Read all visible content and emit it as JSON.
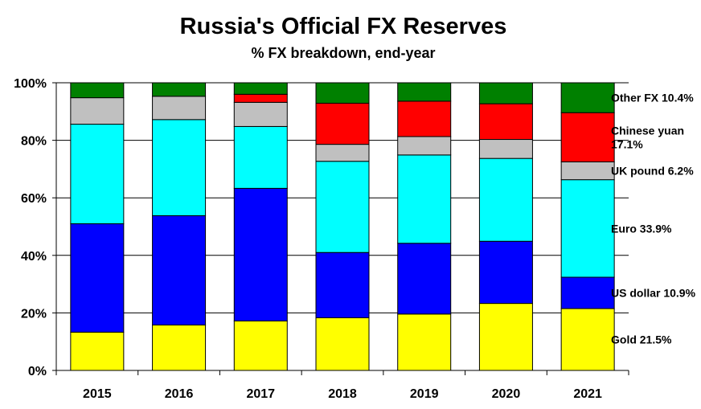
{
  "chart_data": {
    "type": "bar",
    "stacked": true,
    "title": "Russia's Official FX Reserves",
    "subtitle": "% FX breakdown, end-year",
    "categories": [
      "2015",
      "2016",
      "2017",
      "2018",
      "2019",
      "2020",
      "2021"
    ],
    "ylim": [
      0,
      100
    ],
    "yticks": [
      0,
      20,
      40,
      60,
      80,
      100
    ],
    "ytick_labels": [
      "0%",
      "20%",
      "40%",
      "60%",
      "80%",
      "100%"
    ],
    "grid": "horizontal",
    "series": [
      {
        "key": "gold",
        "color": "#ffff00",
        "values": [
          13.3,
          15.8,
          17.2,
          18.3,
          19.6,
          23.3,
          21.5
        ]
      },
      {
        "key": "usd",
        "color": "#0000ff",
        "values": [
          37.7,
          38.0,
          46.1,
          22.7,
          24.6,
          21.6,
          10.9
        ]
      },
      {
        "key": "eur",
        "color": "#00ffff",
        "values": [
          34.6,
          33.4,
          21.5,
          31.7,
          30.7,
          28.8,
          33.9
        ]
      },
      {
        "key": "gbp",
        "color": "#c0c0c0",
        "values": [
          9.2,
          8.1,
          8.4,
          5.9,
          6.4,
          6.6,
          6.2
        ]
      },
      {
        "key": "cny",
        "color": "#ff0000",
        "values": [
          0.0,
          0.0,
          2.8,
          14.3,
          12.3,
          12.4,
          17.1
        ]
      },
      {
        "key": "other",
        "color": "#008000",
        "values": [
          5.2,
          4.7,
          4.0,
          7.1,
          6.4,
          7.3,
          10.4
        ]
      }
    ],
    "annotations": [
      {
        "series": "other",
        "lines": [
          "Other FX 10.4%"
        ]
      },
      {
        "series": "cny",
        "lines": [
          "Chinese yuan",
          "17.1%"
        ]
      },
      {
        "series": "gbp",
        "lines": [
          "UK pound 6.2%"
        ]
      },
      {
        "series": "eur",
        "lines": [
          "Euro 33.9%"
        ]
      },
      {
        "series": "usd",
        "lines": [
          "US dollar 10.9%"
        ]
      },
      {
        "series": "gold",
        "lines": [
          "Gold 21.5%"
        ]
      }
    ]
  }
}
